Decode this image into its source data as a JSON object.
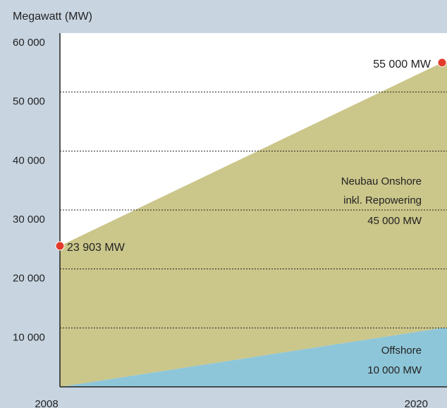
{
  "chart_data": {
    "type": "stacked_area",
    "y_label": "Megawatt (MW)",
    "x": [
      2008,
      2020
    ],
    "xlim": [
      2008,
      2020
    ],
    "xticks": [
      2008,
      2020
    ],
    "ylim": [
      0,
      60000
    ],
    "yticks": [
      {
        "value": 10000,
        "label": "10 000"
      },
      {
        "value": 20000,
        "label": "20 000"
      },
      {
        "value": 30000,
        "label": "30 000"
      },
      {
        "value": 40000,
        "label": "40 000"
      },
      {
        "value": 50000,
        "label": "50 000"
      },
      {
        "value": 60000,
        "label": "60 000"
      }
    ],
    "grid": true,
    "series": [
      {
        "name": "Offshore",
        "color": "#8ec6d9",
        "values": [
          0,
          10000
        ],
        "value_labels": [
          null,
          "10 000 MW"
        ]
      },
      {
        "name": [
          "Neubau Onshore",
          "inkl. Repowering"
        ],
        "color": "#cbc68a",
        "values": [
          23903,
          45000
        ],
        "value_labels": [
          null,
          "45 000 MW"
        ]
      }
    ],
    "totals": [
      23903,
      55000
    ],
    "total_labels": [
      "23 903 MW",
      "55 000 MW"
    ],
    "accent_color": "#e23b2a"
  }
}
